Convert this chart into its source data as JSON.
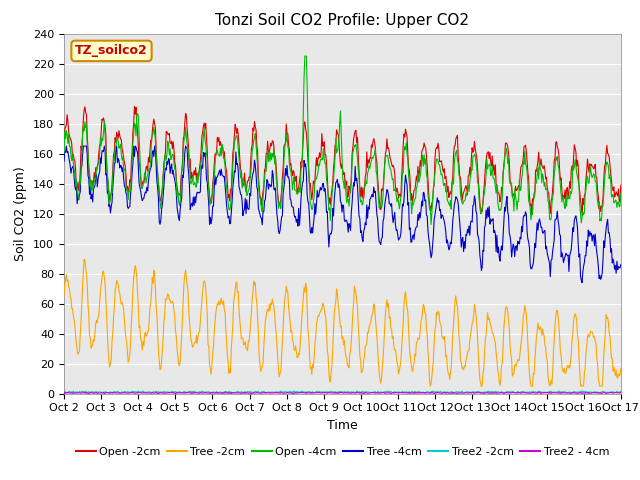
{
  "title": "Tonzi Soil CO2 Profile: Upper CO2",
  "xlabel": "Time",
  "ylabel": "Soil CO2 (ppm)",
  "watermark": "TZ_soilco2",
  "ylim": [
    0,
    240
  ],
  "yticks": [
    0,
    20,
    40,
    60,
    80,
    100,
    120,
    140,
    160,
    180,
    200,
    220,
    240
  ],
  "xtick_labels": [
    "Oct 2",
    "Oct 3",
    "Oct 4",
    "Oct 5",
    "Oct 6",
    "Oct 7",
    "Oct 8",
    "Oct 9",
    "Oct 10",
    "Oct 11",
    "Oct 12",
    "Oct 13",
    "Oct 14",
    "Oct 15",
    "Oct 16",
    "Oct 17"
  ],
  "series_colors": {
    "open2cm": "#dd0000",
    "tree2cm": "#ffa500",
    "open4cm": "#00bb00",
    "tree4cm": "#0000cc",
    "tree2_2cm": "#00cccc",
    "tree2_4cm": "#cc00cc"
  },
  "legend_labels": [
    "Open -2cm",
    "Tree -2cm",
    "Open -4cm",
    "Tree -4cm",
    "Tree2 -2cm",
    "Tree2 - 4cm"
  ],
  "plot_bg_color": "#e8e8e8",
  "title_fontsize": 11,
  "axis_fontsize": 9,
  "tick_fontsize": 8,
  "legend_fontsize": 8
}
